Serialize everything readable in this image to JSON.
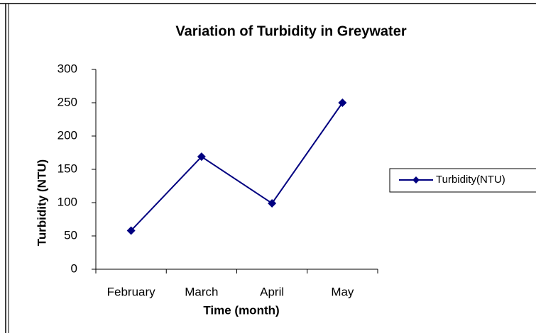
{
  "chart_data": {
    "type": "line",
    "title": "Variation of Turbidity in Greywater",
    "x_label": "Time (month)",
    "y_label": "Turbidity (NTU)",
    "categories": [
      "February",
      "March",
      "April",
      "May"
    ],
    "series": [
      {
        "name": "Turbidity(NTU)",
        "color": "#000080",
        "values": [
          58,
          169,
          99,
          250
        ]
      }
    ],
    "ylim": [
      0,
      300
    ],
    "yticks": [
      0,
      50,
      100,
      150,
      200,
      250,
      300
    ],
    "legend": "right",
    "grid": false
  }
}
